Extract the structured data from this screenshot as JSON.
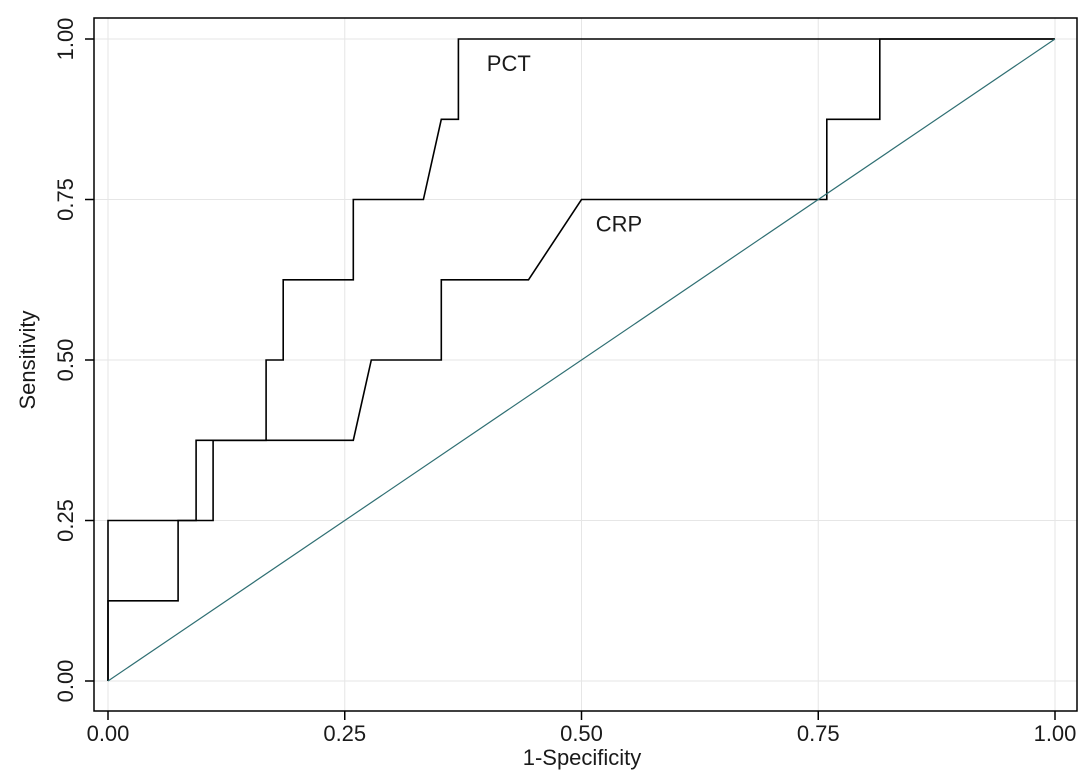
{
  "chart_data": {
    "type": "line",
    "title": "",
    "xlabel": "1-Specificity",
    "ylabel": "Sensitivity",
    "xlim": [
      0,
      1
    ],
    "ylim": [
      0,
      1
    ],
    "xticks": [
      "0.00",
      "0.25",
      "0.50",
      "0.75",
      "1.00"
    ],
    "yticks": [
      "0.00",
      "0.25",
      "0.50",
      "0.75",
      "1.00"
    ],
    "grid": true,
    "series": [
      {
        "name": "PCT",
        "color": "#000000",
        "points": [
          [
            0,
            0
          ],
          [
            0,
            0.125
          ],
          [
            0.074,
            0.125
          ],
          [
            0.074,
            0.25
          ],
          [
            0.093,
            0.25
          ],
          [
            0.093,
            0.375
          ],
          [
            0.167,
            0.375
          ],
          [
            0.167,
            0.5
          ],
          [
            0.185,
            0.5
          ],
          [
            0.185,
            0.625
          ],
          [
            0.259,
            0.625
          ],
          [
            0.259,
            0.75
          ],
          [
            0.333,
            0.75
          ],
          [
            0.352,
            0.875
          ],
          [
            0.37,
            0.875
          ],
          [
            0.37,
            1.0
          ],
          [
            1.0,
            1.0
          ]
        ]
      },
      {
        "name": "CRP",
        "color": "#000000",
        "points": [
          [
            0,
            0
          ],
          [
            0,
            0.25
          ],
          [
            0.111,
            0.25
          ],
          [
            0.111,
            0.375
          ],
          [
            0.259,
            0.375
          ],
          [
            0.278,
            0.5
          ],
          [
            0.352,
            0.5
          ],
          [
            0.352,
            0.625
          ],
          [
            0.444,
            0.625
          ],
          [
            0.5,
            0.75
          ],
          [
            0.759,
            0.75
          ],
          [
            0.759,
            0.875
          ],
          [
            0.815,
            0.875
          ],
          [
            0.815,
            1.0
          ],
          [
            1.0,
            1.0
          ]
        ]
      },
      {
        "name": "",
        "color": "#2f6f73",
        "points": [
          [
            0,
            0
          ],
          [
            1,
            1
          ]
        ]
      }
    ],
    "annotations": [
      {
        "text": "PCT",
        "x": 0.4,
        "y": 0.95
      },
      {
        "text": "CRP",
        "x": 0.515,
        "y": 0.7
      }
    ]
  }
}
